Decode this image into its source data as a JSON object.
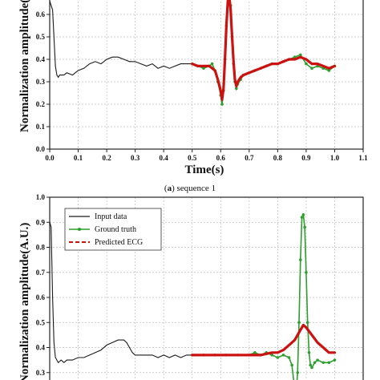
{
  "chart_data": [
    {
      "type": "line",
      "caption_label": "a",
      "caption_text": ") sequence 1",
      "xlabel": "Time(s)",
      "ylabel": "Normalization amplitude(A.U.)",
      "xlim": [
        0.0,
        1.1
      ],
      "ylim": [
        0.0,
        0.7
      ],
      "xticks": [
        "0.0",
        "0.1",
        "0.2",
        "0.3",
        "0.4",
        "0.5",
        "0.6",
        "0.7",
        "0.8",
        "0.9",
        "1.0",
        "1.1"
      ],
      "yticks": [
        "0.0",
        "0.1",
        "0.2",
        "0.3",
        "0.4",
        "0.5",
        "0.6"
      ],
      "grid": true,
      "series": [
        {
          "key": "input",
          "color": "#1a1a1a",
          "style": "solid",
          "x": [
            0.0,
            0.01,
            0.015,
            0.02,
            0.025,
            0.03,
            0.035,
            0.04,
            0.05,
            0.06,
            0.08,
            0.1,
            0.12,
            0.14,
            0.16,
            0.18,
            0.2,
            0.22,
            0.24,
            0.26,
            0.28,
            0.3,
            0.32,
            0.34,
            0.36,
            0.38,
            0.4,
            0.42,
            0.44,
            0.46,
            0.48,
            0.5
          ],
          "y": [
            0.66,
            0.62,
            0.5,
            0.37,
            0.33,
            0.32,
            0.33,
            0.33,
            0.33,
            0.34,
            0.33,
            0.35,
            0.36,
            0.38,
            0.39,
            0.38,
            0.4,
            0.41,
            0.41,
            0.4,
            0.39,
            0.39,
            0.38,
            0.37,
            0.38,
            0.36,
            0.37,
            0.36,
            0.37,
            0.38,
            0.38,
            0.38
          ]
        },
        {
          "key": "truth",
          "color": "#2e9e2e",
          "style": "marker",
          "x": [
            0.5,
            0.52,
            0.54,
            0.56,
            0.57,
            0.58,
            0.59,
            0.6,
            0.605,
            0.61,
            0.615,
            0.62,
            0.625,
            0.63,
            0.635,
            0.64,
            0.645,
            0.65,
            0.655,
            0.66,
            0.67,
            0.68,
            0.7,
            0.72,
            0.74,
            0.76,
            0.78,
            0.8,
            0.82,
            0.84,
            0.86,
            0.88,
            0.9,
            0.92,
            0.94,
            0.96,
            0.98,
            1.0
          ],
          "y": [
            0.38,
            0.37,
            0.36,
            0.37,
            0.38,
            0.35,
            0.3,
            0.24,
            0.2,
            0.26,
            0.4,
            0.55,
            0.68,
            0.7,
            0.64,
            0.5,
            0.38,
            0.3,
            0.27,
            0.29,
            0.31,
            0.33,
            0.34,
            0.35,
            0.36,
            0.37,
            0.38,
            0.38,
            0.39,
            0.4,
            0.41,
            0.42,
            0.38,
            0.36,
            0.37,
            0.36,
            0.35,
            0.37
          ]
        },
        {
          "key": "pred",
          "color": "#cc1111",
          "style": "thick",
          "x": [
            0.5,
            0.52,
            0.54,
            0.56,
            0.58,
            0.59,
            0.6,
            0.605,
            0.61,
            0.615,
            0.62,
            0.625,
            0.63,
            0.635,
            0.64,
            0.645,
            0.65,
            0.655,
            0.66,
            0.67,
            0.68,
            0.7,
            0.72,
            0.74,
            0.76,
            0.78,
            0.8,
            0.82,
            0.84,
            0.86,
            0.88,
            0.9,
            0.92,
            0.94,
            0.96,
            0.98,
            1.0
          ],
          "y": [
            0.38,
            0.37,
            0.37,
            0.37,
            0.35,
            0.31,
            0.26,
            0.22,
            0.27,
            0.4,
            0.55,
            0.66,
            0.68,
            0.62,
            0.5,
            0.39,
            0.31,
            0.28,
            0.3,
            0.32,
            0.33,
            0.34,
            0.35,
            0.36,
            0.37,
            0.38,
            0.38,
            0.39,
            0.4,
            0.4,
            0.41,
            0.4,
            0.38,
            0.38,
            0.37,
            0.36,
            0.37
          ]
        }
      ]
    },
    {
      "type": "line",
      "ylabel": "Normalization amplitude(A.U.)",
      "xlim": [
        0.0,
        1.1
      ],
      "ylim": [
        0.2,
        1.0
      ],
      "yticks": [
        "0.3",
        "0.4",
        "0.5",
        "0.6",
        "0.7",
        "0.8",
        "0.9",
        "1.0"
      ],
      "grid": true,
      "legend_position": "top-left",
      "legend": [
        {
          "key": "input",
          "label": "Input data"
        },
        {
          "key": "truth",
          "label": "Ground truth"
        },
        {
          "key": "pred",
          "label": "Predicted ECG"
        }
      ],
      "series": [
        {
          "key": "input",
          "name": "Input data",
          "color": "#1a1a1a",
          "style": "solid",
          "x": [
            0.0,
            0.005,
            0.01,
            0.015,
            0.02,
            0.03,
            0.04,
            0.05,
            0.06,
            0.08,
            0.1,
            0.12,
            0.14,
            0.16,
            0.18,
            0.2,
            0.22,
            0.24,
            0.26,
            0.27,
            0.28,
            0.29,
            0.3,
            0.32,
            0.34,
            0.36,
            0.38,
            0.4,
            0.42,
            0.44,
            0.46,
            0.48,
            0.5
          ],
          "y": [
            0.9,
            0.88,
            0.6,
            0.42,
            0.36,
            0.34,
            0.35,
            0.34,
            0.35,
            0.35,
            0.36,
            0.36,
            0.37,
            0.38,
            0.39,
            0.41,
            0.42,
            0.43,
            0.43,
            0.42,
            0.4,
            0.38,
            0.37,
            0.37,
            0.37,
            0.37,
            0.36,
            0.37,
            0.36,
            0.37,
            0.36,
            0.37,
            0.37
          ]
        },
        {
          "key": "truth",
          "name": "Ground truth",
          "color": "#2e9e2e",
          "style": "marker",
          "x": [
            0.5,
            0.54,
            0.58,
            0.62,
            0.66,
            0.7,
            0.72,
            0.74,
            0.76,
            0.78,
            0.8,
            0.82,
            0.84,
            0.85,
            0.86,
            0.865,
            0.87,
            0.875,
            0.88,
            0.885,
            0.89,
            0.895,
            0.9,
            0.905,
            0.91,
            0.915,
            0.92,
            0.93,
            0.94,
            0.96,
            0.98,
            1.0
          ],
          "y": [
            0.37,
            0.37,
            0.37,
            0.37,
            0.37,
            0.37,
            0.38,
            0.37,
            0.38,
            0.37,
            0.36,
            0.37,
            0.36,
            0.33,
            0.23,
            0.22,
            0.3,
            0.5,
            0.75,
            0.92,
            0.93,
            0.88,
            0.7,
            0.5,
            0.38,
            0.33,
            0.32,
            0.34,
            0.35,
            0.34,
            0.34,
            0.35
          ]
        },
        {
          "key": "pred",
          "name": "Predicted ECG",
          "color": "#cc1111",
          "style": "thick",
          "x": [
            0.5,
            0.54,
            0.58,
            0.62,
            0.66,
            0.7,
            0.74,
            0.78,
            0.8,
            0.82,
            0.84,
            0.86,
            0.88,
            0.89,
            0.9,
            0.92,
            0.94,
            0.96,
            0.98,
            1.0
          ],
          "y": [
            0.37,
            0.37,
            0.37,
            0.37,
            0.37,
            0.37,
            0.37,
            0.38,
            0.38,
            0.39,
            0.41,
            0.43,
            0.47,
            0.49,
            0.48,
            0.45,
            0.42,
            0.4,
            0.38,
            0.38
          ]
        }
      ]
    }
  ]
}
